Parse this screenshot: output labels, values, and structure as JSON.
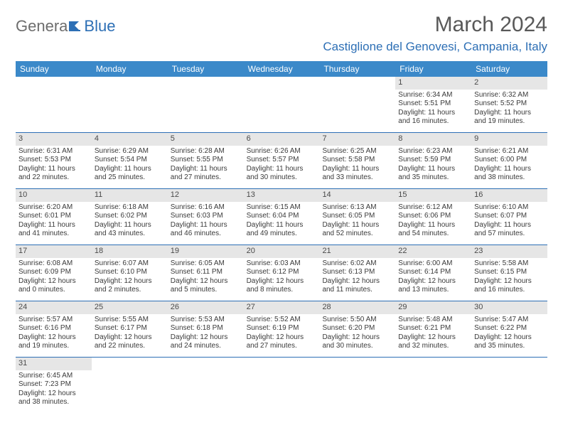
{
  "logo": {
    "text1": "Genera",
    "text2": "Blue"
  },
  "title": "March 2024",
  "location": "Castiglione del Genovesi, Campania, Italy",
  "colors": {
    "header_bg": "#3b89c9",
    "accent": "#2d6fb5",
    "daynum_bg": "#e6e6e6",
    "text_dark": "#3a3a3a",
    "text_mid": "#595959",
    "text_light": "#6d6d6d",
    "white": "#ffffff"
  },
  "weekdays": [
    "Sunday",
    "Monday",
    "Tuesday",
    "Wednesday",
    "Thursday",
    "Friday",
    "Saturday"
  ],
  "weeks": [
    [
      null,
      null,
      null,
      null,
      null,
      {
        "n": "1",
        "sunrise": "Sunrise: 6:34 AM",
        "sunset": "Sunset: 5:51 PM",
        "day1": "Daylight: 11 hours",
        "day2": "and 16 minutes."
      },
      {
        "n": "2",
        "sunrise": "Sunrise: 6:32 AM",
        "sunset": "Sunset: 5:52 PM",
        "day1": "Daylight: 11 hours",
        "day2": "and 19 minutes."
      }
    ],
    [
      {
        "n": "3",
        "sunrise": "Sunrise: 6:31 AM",
        "sunset": "Sunset: 5:53 PM",
        "day1": "Daylight: 11 hours",
        "day2": "and 22 minutes."
      },
      {
        "n": "4",
        "sunrise": "Sunrise: 6:29 AM",
        "sunset": "Sunset: 5:54 PM",
        "day1": "Daylight: 11 hours",
        "day2": "and 25 minutes."
      },
      {
        "n": "5",
        "sunrise": "Sunrise: 6:28 AM",
        "sunset": "Sunset: 5:55 PM",
        "day1": "Daylight: 11 hours",
        "day2": "and 27 minutes."
      },
      {
        "n": "6",
        "sunrise": "Sunrise: 6:26 AM",
        "sunset": "Sunset: 5:57 PM",
        "day1": "Daylight: 11 hours",
        "day2": "and 30 minutes."
      },
      {
        "n": "7",
        "sunrise": "Sunrise: 6:25 AM",
        "sunset": "Sunset: 5:58 PM",
        "day1": "Daylight: 11 hours",
        "day2": "and 33 minutes."
      },
      {
        "n": "8",
        "sunrise": "Sunrise: 6:23 AM",
        "sunset": "Sunset: 5:59 PM",
        "day1": "Daylight: 11 hours",
        "day2": "and 35 minutes."
      },
      {
        "n": "9",
        "sunrise": "Sunrise: 6:21 AM",
        "sunset": "Sunset: 6:00 PM",
        "day1": "Daylight: 11 hours",
        "day2": "and 38 minutes."
      }
    ],
    [
      {
        "n": "10",
        "sunrise": "Sunrise: 6:20 AM",
        "sunset": "Sunset: 6:01 PM",
        "day1": "Daylight: 11 hours",
        "day2": "and 41 minutes."
      },
      {
        "n": "11",
        "sunrise": "Sunrise: 6:18 AM",
        "sunset": "Sunset: 6:02 PM",
        "day1": "Daylight: 11 hours",
        "day2": "and 43 minutes."
      },
      {
        "n": "12",
        "sunrise": "Sunrise: 6:16 AM",
        "sunset": "Sunset: 6:03 PM",
        "day1": "Daylight: 11 hours",
        "day2": "and 46 minutes."
      },
      {
        "n": "13",
        "sunrise": "Sunrise: 6:15 AM",
        "sunset": "Sunset: 6:04 PM",
        "day1": "Daylight: 11 hours",
        "day2": "and 49 minutes."
      },
      {
        "n": "14",
        "sunrise": "Sunrise: 6:13 AM",
        "sunset": "Sunset: 6:05 PM",
        "day1": "Daylight: 11 hours",
        "day2": "and 52 minutes."
      },
      {
        "n": "15",
        "sunrise": "Sunrise: 6:12 AM",
        "sunset": "Sunset: 6:06 PM",
        "day1": "Daylight: 11 hours",
        "day2": "and 54 minutes."
      },
      {
        "n": "16",
        "sunrise": "Sunrise: 6:10 AM",
        "sunset": "Sunset: 6:07 PM",
        "day1": "Daylight: 11 hours",
        "day2": "and 57 minutes."
      }
    ],
    [
      {
        "n": "17",
        "sunrise": "Sunrise: 6:08 AM",
        "sunset": "Sunset: 6:09 PM",
        "day1": "Daylight: 12 hours",
        "day2": "and 0 minutes."
      },
      {
        "n": "18",
        "sunrise": "Sunrise: 6:07 AM",
        "sunset": "Sunset: 6:10 PM",
        "day1": "Daylight: 12 hours",
        "day2": "and 2 minutes."
      },
      {
        "n": "19",
        "sunrise": "Sunrise: 6:05 AM",
        "sunset": "Sunset: 6:11 PM",
        "day1": "Daylight: 12 hours",
        "day2": "and 5 minutes."
      },
      {
        "n": "20",
        "sunrise": "Sunrise: 6:03 AM",
        "sunset": "Sunset: 6:12 PM",
        "day1": "Daylight: 12 hours",
        "day2": "and 8 minutes."
      },
      {
        "n": "21",
        "sunrise": "Sunrise: 6:02 AM",
        "sunset": "Sunset: 6:13 PM",
        "day1": "Daylight: 12 hours",
        "day2": "and 11 minutes."
      },
      {
        "n": "22",
        "sunrise": "Sunrise: 6:00 AM",
        "sunset": "Sunset: 6:14 PM",
        "day1": "Daylight: 12 hours",
        "day2": "and 13 minutes."
      },
      {
        "n": "23",
        "sunrise": "Sunrise: 5:58 AM",
        "sunset": "Sunset: 6:15 PM",
        "day1": "Daylight: 12 hours",
        "day2": "and 16 minutes."
      }
    ],
    [
      {
        "n": "24",
        "sunrise": "Sunrise: 5:57 AM",
        "sunset": "Sunset: 6:16 PM",
        "day1": "Daylight: 12 hours",
        "day2": "and 19 minutes."
      },
      {
        "n": "25",
        "sunrise": "Sunrise: 5:55 AM",
        "sunset": "Sunset: 6:17 PM",
        "day1": "Daylight: 12 hours",
        "day2": "and 22 minutes."
      },
      {
        "n": "26",
        "sunrise": "Sunrise: 5:53 AM",
        "sunset": "Sunset: 6:18 PM",
        "day1": "Daylight: 12 hours",
        "day2": "and 24 minutes."
      },
      {
        "n": "27",
        "sunrise": "Sunrise: 5:52 AM",
        "sunset": "Sunset: 6:19 PM",
        "day1": "Daylight: 12 hours",
        "day2": "and 27 minutes."
      },
      {
        "n": "28",
        "sunrise": "Sunrise: 5:50 AM",
        "sunset": "Sunset: 6:20 PM",
        "day1": "Daylight: 12 hours",
        "day2": "and 30 minutes."
      },
      {
        "n": "29",
        "sunrise": "Sunrise: 5:48 AM",
        "sunset": "Sunset: 6:21 PM",
        "day1": "Daylight: 12 hours",
        "day2": "and 32 minutes."
      },
      {
        "n": "30",
        "sunrise": "Sunrise: 5:47 AM",
        "sunset": "Sunset: 6:22 PM",
        "day1": "Daylight: 12 hours",
        "day2": "and 35 minutes."
      }
    ],
    [
      {
        "n": "31",
        "sunrise": "Sunrise: 6:45 AM",
        "sunset": "Sunset: 7:23 PM",
        "day1": "Daylight: 12 hours",
        "day2": "and 38 minutes."
      },
      null,
      null,
      null,
      null,
      null,
      null
    ]
  ]
}
